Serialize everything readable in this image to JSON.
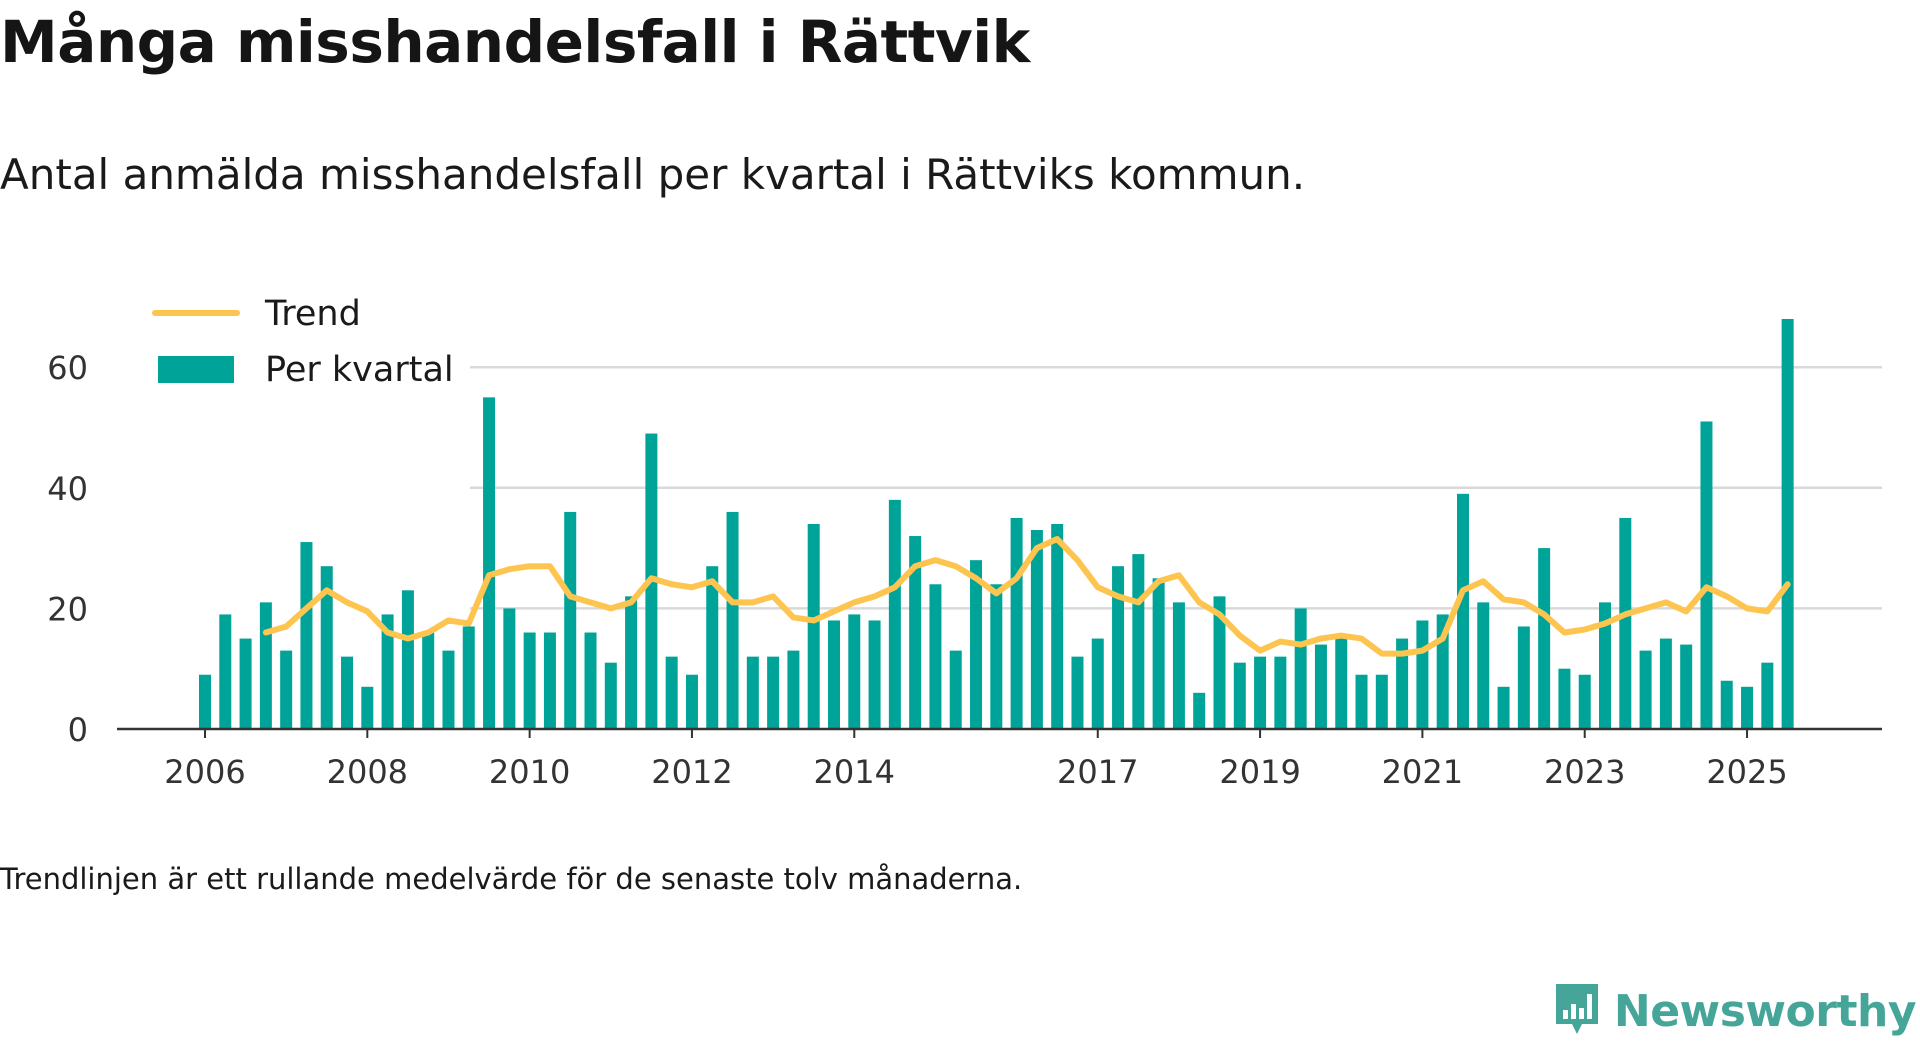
{
  "title": "Många misshandelsfall i Rättvik",
  "subtitle": "Antal anmälda misshandelsfall per kvartal i Rättviks kommun.",
  "footnote": "Trendlinjen är ett rullande medelvärde för de senaste tolv månaderna.",
  "brand": {
    "name": "Newsworthy",
    "icon": "newsworthy-logo-icon",
    "color": "#44a598"
  },
  "colors": {
    "bar": "#00a398",
    "trend": "#fdc550",
    "grid": "#d9d9d9",
    "axis": "#333333"
  },
  "chart_data": {
    "type": "bar",
    "title": "Många misshandelsfall i Rättvik",
    "ylim": [
      0,
      70
    ],
    "y_ticks": [
      0,
      20,
      40,
      60
    ],
    "grid": true,
    "legend_position": "top-left",
    "x_tick_labels": [
      {
        "label": "2006",
        "index": 0
      },
      {
        "label": "2008",
        "index": 8
      },
      {
        "label": "2010",
        "index": 16
      },
      {
        "label": "2012",
        "index": 24
      },
      {
        "label": "2014",
        "index": 32
      },
      {
        "label": "2017",
        "index": 44
      },
      {
        "label": "2019",
        "index": 52
      },
      {
        "label": "2021",
        "index": 60
      },
      {
        "label": "2023",
        "index": 68
      },
      {
        "label": "2025",
        "index": 76
      }
    ],
    "series": [
      {
        "name": "Per kvartal",
        "type": "bar",
        "values": [
          9,
          19,
          15,
          21,
          13,
          31,
          27,
          12,
          7,
          19,
          23,
          16,
          13,
          17,
          55,
          20,
          16,
          16,
          36,
          16,
          11,
          22,
          49,
          12,
          9,
          27,
          36,
          12,
          12,
          13,
          34,
          18,
          19,
          18,
          38,
          32,
          24,
          13,
          28,
          24,
          35,
          33,
          34,
          12,
          15,
          27,
          29,
          25,
          21,
          6,
          22,
          11,
          12,
          12,
          20,
          14,
          15,
          9,
          9,
          15,
          18,
          19,
          39,
          21,
          7,
          17,
          30,
          10,
          9,
          21,
          35,
          13,
          15,
          14,
          51,
          8,
          7,
          11,
          68
        ]
      },
      {
        "name": "Trend",
        "type": "line",
        "values": [
          null,
          null,
          null,
          16,
          17,
          20,
          23,
          21,
          19.5,
          16,
          15,
          16,
          18,
          17.5,
          25.5,
          26.5,
          27,
          27,
          22,
          21,
          20,
          21,
          25,
          24,
          23.5,
          24.5,
          21,
          21,
          22,
          18.5,
          18,
          19.5,
          21,
          22,
          23.5,
          27,
          28,
          27,
          25,
          22.5,
          25,
          30,
          31.5,
          28,
          23.5,
          22,
          21,
          24.5,
          25.5,
          21,
          19,
          15.5,
          13,
          14.5,
          14,
          15,
          15.5,
          15,
          12.5,
          12.5,
          13,
          15,
          23,
          24.5,
          21.5,
          21,
          19,
          16,
          16.5,
          17.5,
          19,
          20,
          21,
          19.5,
          23.5,
          22,
          20,
          19.5,
          24
        ]
      }
    ]
  }
}
